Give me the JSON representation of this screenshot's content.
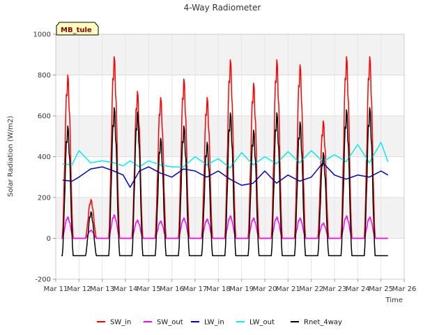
{
  "chart_data": {
    "type": "line",
    "title": "4-Way Radiometer",
    "xlabel": "Time",
    "ylabel": "Solar Radiation (W/m2)",
    "station_label": "MB_tule",
    "ylim": [
      -200,
      1000
    ],
    "xlim": [
      11,
      26
    ],
    "y_ticks": [
      -200,
      0,
      200,
      400,
      600,
      800,
      1000
    ],
    "x_ticks": [
      {
        "value": 11,
        "label": "Mar 11"
      },
      {
        "value": 12,
        "label": "Mar 12"
      },
      {
        "value": 13,
        "label": "Mar 13"
      },
      {
        "value": 14,
        "label": "Mar 14"
      },
      {
        "value": 15,
        "label": "Mar 15"
      },
      {
        "value": 16,
        "label": "Mar 16"
      },
      {
        "value": 17,
        "label": "Mar 17"
      },
      {
        "value": 18,
        "label": "Mar 18"
      },
      {
        "value": 19,
        "label": "Mar 19"
      },
      {
        "value": 20,
        "label": "Mar 20"
      },
      {
        "value": 21,
        "label": "Mar 21"
      },
      {
        "value": 22,
        "label": "Mar 22"
      },
      {
        "value": 23,
        "label": "Mar 23"
      },
      {
        "value": 24,
        "label": "Mar 24"
      },
      {
        "value": 25,
        "label": "Mar 25"
      },
      {
        "value": 26,
        "label": "Mar 26"
      }
    ],
    "grid": true,
    "legend_position": "bottom",
    "series": [
      {
        "name": "SW_in",
        "color": "#ff0000",
        "daily_peaks": [
          {
            "day": "Mar 12",
            "peak": 800
          },
          {
            "day": "Mar 13",
            "peak": 190
          },
          {
            "day": "Mar 14",
            "peak": 890
          },
          {
            "day": "Mar 15",
            "peak": 720
          },
          {
            "day": "Mar 16",
            "peak": 690
          },
          {
            "day": "Mar 17",
            "peak": 780
          },
          {
            "day": "Mar 18",
            "peak": 690
          },
          {
            "day": "Mar 19",
            "peak": 875
          },
          {
            "day": "Mar 20",
            "peak": 760
          },
          {
            "day": "Mar 21",
            "peak": 875
          },
          {
            "day": "Mar 22",
            "peak": 850
          },
          {
            "day": "Mar 23",
            "peak": 575
          },
          {
            "day": "Mar 24",
            "peak": 890
          },
          {
            "day": "Mar 25",
            "peak": 890
          }
        ],
        "night_value": 0
      },
      {
        "name": "SW_out",
        "color": "#ff00ff",
        "daily_peaks": [
          {
            "day": "Mar 12",
            "peak": 105
          },
          {
            "day": "Mar 13",
            "peak": 40
          },
          {
            "day": "Mar 14",
            "peak": 115
          },
          {
            "day": "Mar 15",
            "peak": 90
          },
          {
            "day": "Mar 16",
            "peak": 85
          },
          {
            "day": "Mar 17",
            "peak": 100
          },
          {
            "day": "Mar 18",
            "peak": 95
          },
          {
            "day": "Mar 19",
            "peak": 110
          },
          {
            "day": "Mar 20",
            "peak": 100
          },
          {
            "day": "Mar 21",
            "peak": 105
          },
          {
            "day": "Mar 22",
            "peak": 100
          },
          {
            "day": "Mar 23",
            "peak": 75
          },
          {
            "day": "Mar 24",
            "peak": 110
          },
          {
            "day": "Mar 25",
            "peak": 105
          }
        ],
        "night_value": 0
      },
      {
        "name": "LW_in",
        "color": "#0000cc",
        "x": [
          11.3,
          11.7,
          12.0,
          12.5,
          13.0,
          13.5,
          13.9,
          14.2,
          14.6,
          15.0,
          15.5,
          16.0,
          16.5,
          17.0,
          17.5,
          18.0,
          18.5,
          19.0,
          19.5,
          20.0,
          20.5,
          21.0,
          21.5,
          22.0,
          22.5,
          23.0,
          23.5,
          24.0,
          24.5,
          25.0,
          25.3
        ],
        "y": [
          285,
          280,
          300,
          340,
          350,
          330,
          310,
          250,
          330,
          350,
          320,
          300,
          340,
          330,
          300,
          330,
          290,
          260,
          270,
          330,
          270,
          310,
          280,
          300,
          370,
          310,
          290,
          310,
          300,
          330,
          310
        ]
      },
      {
        "name": "LW_out",
        "color": "#00eeee",
        "x": [
          11.3,
          11.7,
          12.0,
          12.5,
          13.0,
          13.5,
          13.9,
          14.2,
          14.6,
          15.0,
          15.5,
          16.0,
          16.5,
          17.0,
          17.5,
          18.0,
          18.5,
          19.0,
          19.5,
          20.0,
          20.5,
          21.0,
          21.5,
          22.0,
          22.5,
          23.0,
          23.5,
          24.0,
          24.5,
          25.0,
          25.3
        ],
        "y": [
          365,
          360,
          430,
          370,
          380,
          370,
          355,
          380,
          350,
          380,
          360,
          350,
          350,
          400,
          360,
          390,
          345,
          420,
          360,
          400,
          365,
          425,
          370,
          430,
          375,
          410,
          375,
          460,
          370,
          470,
          375
        ]
      },
      {
        "name": "Rnet_4way",
        "color": "#000000",
        "daily_peaks": [
          {
            "day": "Mar 12",
            "peak": 550
          },
          {
            "day": "Mar 13",
            "peak": 130
          },
          {
            "day": "Mar 14",
            "peak": 640
          },
          {
            "day": "Mar 15",
            "peak": 620
          },
          {
            "day": "Mar 16",
            "peak": 490
          },
          {
            "day": "Mar 17",
            "peak": 550
          },
          {
            "day": "Mar 18",
            "peak": 470
          },
          {
            "day": "Mar 19",
            "peak": 615
          },
          {
            "day": "Mar 20",
            "peak": 530
          },
          {
            "day": "Mar 21",
            "peak": 615
          },
          {
            "day": "Mar 22",
            "peak": 570
          },
          {
            "day": "Mar 23",
            "peak": 420
          },
          {
            "day": "Mar 24",
            "peak": 630
          },
          {
            "day": "Mar 25",
            "peak": 640
          }
        ],
        "night_value": -85
      }
    ]
  }
}
